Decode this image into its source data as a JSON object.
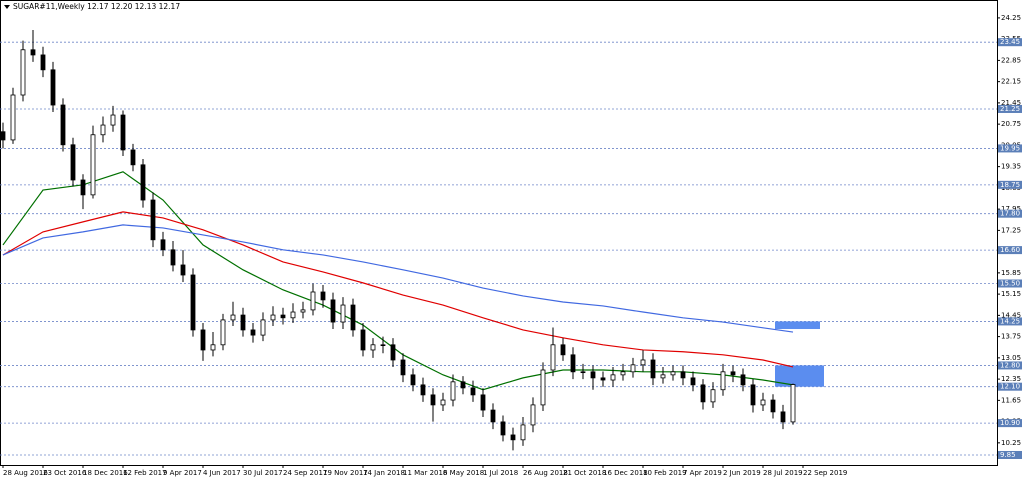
{
  "chart_data": {
    "type": "candlestick",
    "title": "SUGAR#11,Weekly  12.17 12.20 12.13 12.17",
    "ylim": [
      9.52,
      24.84
    ],
    "yticks": [
      24.25,
      23.55,
      22.85,
      22.15,
      21.45,
      20.75,
      20.05,
      19.35,
      18.65,
      17.95,
      17.25,
      16.55,
      15.85,
      15.15,
      14.45,
      13.75,
      13.05,
      12.35,
      11.65,
      10.95,
      10.25
    ],
    "levels": [
      23.45,
      21.25,
      19.95,
      18.75,
      {
        "value": 17.8,
        "label": "17.80"
      },
      {
        "value": 16.6,
        "label": "16.60"
      },
      {
        "value": 15.5,
        "label": "15.50"
      },
      14.25,
      {
        "value": 12.8,
        "label": "12.80"
      },
      {
        "value": 12.1,
        "label": "12.10"
      },
      {
        "value": 10.9,
        "label": "10.90"
      },
      9.85
    ],
    "date_labels": [
      "28 Aug 2016",
      "23 Oct 2016",
      "18 Dec 2016",
      "12 Feb 2017",
      "9 Apr 2017",
      "4 Jun 2017",
      "30 Jul 2017",
      "24 Sep 2017",
      "19 Nov 2017",
      "14 Jan 2018",
      "11 Mar 2018",
      "6 May 2018",
      "1 Jul 2018",
      "26 Aug 2018",
      "21 Oct 2018",
      "16 Dec 2018",
      "10 Feb 2019",
      "7 Apr 2019",
      "2 Jun 2019",
      "28 Jul 2019",
      "22 Sep 2019"
    ],
    "ohlc": [
      [
        20.5,
        20.8,
        19.95,
        20.23
      ],
      [
        20.23,
        21.95,
        20.1,
        21.71
      ],
      [
        21.71,
        23.5,
        21.5,
        23.2
      ],
      [
        23.2,
        23.85,
        22.8,
        23.03
      ],
      [
        23.03,
        23.3,
        22.3,
        22.54
      ],
      [
        22.54,
        22.8,
        21.15,
        21.38
      ],
      [
        21.38,
        21.6,
        19.85,
        20.07
      ],
      [
        20.07,
        20.3,
        18.7,
        18.91
      ],
      [
        18.91,
        19.1,
        17.95,
        18.42
      ],
      [
        18.42,
        20.7,
        18.3,
        20.4
      ],
      [
        20.4,
        21.0,
        20.15,
        20.72
      ],
      [
        20.72,
        21.35,
        20.5,
        21.05
      ],
      [
        21.05,
        21.2,
        19.7,
        19.9
      ],
      [
        19.9,
        20.1,
        19.2,
        19.41
      ],
      [
        19.41,
        19.6,
        18.0,
        18.25
      ],
      [
        18.25,
        18.5,
        16.7,
        16.94
      ],
      [
        16.94,
        17.2,
        16.4,
        16.61
      ],
      [
        16.61,
        16.9,
        15.9,
        16.11
      ],
      [
        16.11,
        16.6,
        15.55,
        15.78
      ],
      [
        15.78,
        16.0,
        13.75,
        13.97
      ],
      [
        13.97,
        14.2,
        12.95,
        13.31
      ],
      [
        13.31,
        13.9,
        13.1,
        13.48
      ],
      [
        13.48,
        14.5,
        13.3,
        14.3
      ],
      [
        14.3,
        14.9,
        14.1,
        14.46
      ],
      [
        14.46,
        14.7,
        13.75,
        13.97
      ],
      [
        13.97,
        14.2,
        13.55,
        13.8
      ],
      [
        13.8,
        14.55,
        13.6,
        14.3
      ],
      [
        14.3,
        14.75,
        14.1,
        14.46
      ],
      [
        14.46,
        14.7,
        14.15,
        14.37
      ],
      [
        14.37,
        14.85,
        14.2,
        14.56
      ],
      [
        14.56,
        14.9,
        14.35,
        14.63
      ],
      [
        14.63,
        15.5,
        14.45,
        15.22
      ],
      [
        15.22,
        15.45,
        14.7,
        14.96
      ],
      [
        14.96,
        15.2,
        14.0,
        14.23
      ],
      [
        14.23,
        15.05,
        14.0,
        14.79
      ],
      [
        14.79,
        15.0,
        13.75,
        13.97
      ],
      [
        13.97,
        14.2,
        13.1,
        13.31
      ],
      [
        13.31,
        13.7,
        13.05,
        13.48
      ],
      [
        13.48,
        13.75,
        13.2,
        13.48
      ],
      [
        13.48,
        13.7,
        12.75,
        12.98
      ],
      [
        12.98,
        13.2,
        12.25,
        12.49
      ],
      [
        12.49,
        12.7,
        11.95,
        12.16
      ],
      [
        12.16,
        12.4,
        11.6,
        11.83
      ],
      [
        11.83,
        12.05,
        10.95,
        11.5
      ],
      [
        11.5,
        11.9,
        11.3,
        11.66
      ],
      [
        11.66,
        12.5,
        11.45,
        12.26
      ],
      [
        12.26,
        12.45,
        11.85,
        12.06
      ],
      [
        12.06,
        12.3,
        11.6,
        11.83
      ],
      [
        11.83,
        12.05,
        11.1,
        11.33
      ],
      [
        11.33,
        11.55,
        10.7,
        10.94
      ],
      [
        10.94,
        11.15,
        10.3,
        10.51
      ],
      [
        10.51,
        10.75,
        10.0,
        10.35
      ],
      [
        10.35,
        11.1,
        10.15,
        10.84
      ],
      [
        10.84,
        11.75,
        10.6,
        11.5
      ],
      [
        11.5,
        12.9,
        11.3,
        12.65
      ],
      [
        12.65,
        14.05,
        12.45,
        13.48
      ],
      [
        13.48,
        13.7,
        12.95,
        13.15
      ],
      [
        13.15,
        13.4,
        12.35,
        12.59
      ],
      [
        12.59,
        12.85,
        12.35,
        12.59
      ],
      [
        12.59,
        12.8,
        12.0,
        12.39
      ],
      [
        12.39,
        12.6,
        12.1,
        12.32
      ],
      [
        12.32,
        12.75,
        12.1,
        12.49
      ],
      [
        12.49,
        12.85,
        12.3,
        12.59
      ],
      [
        12.59,
        13.05,
        12.4,
        12.82
      ],
      [
        12.82,
        13.3,
        12.6,
        12.98
      ],
      [
        12.98,
        13.2,
        12.15,
        12.39
      ],
      [
        12.39,
        12.75,
        12.2,
        12.49
      ],
      [
        12.49,
        12.8,
        12.3,
        12.59
      ],
      [
        12.59,
        12.8,
        12.15,
        12.39
      ],
      [
        12.39,
        12.6,
        11.95,
        12.16
      ],
      [
        12.16,
        12.35,
        11.35,
        11.6
      ],
      [
        11.6,
        12.25,
        11.4,
        12.0
      ],
      [
        12.0,
        12.85,
        11.8,
        12.59
      ],
      [
        12.59,
        12.8,
        12.25,
        12.49
      ],
      [
        12.49,
        12.7,
        11.95,
        12.16
      ],
      [
        12.16,
        12.35,
        11.25,
        11.5
      ],
      [
        11.5,
        11.9,
        11.3,
        11.66
      ],
      [
        11.66,
        11.85,
        11.05,
        11.27
      ],
      [
        11.27,
        11.5,
        10.7,
        10.94
      ],
      [
        10.94,
        12.2,
        10.85,
        12.17
      ]
    ],
    "ma_x": [
      0,
      4,
      8,
      12,
      16,
      20,
      24,
      28,
      32,
      36,
      40,
      44,
      48,
      52,
      56,
      60,
      64,
      68,
      72,
      76,
      79
    ],
    "series": [
      {
        "color": "#007000",
        "values": [
          16.77,
          18.58,
          18.75,
          19.18,
          18.25,
          16.77,
          15.95,
          15.29,
          14.79,
          14.13,
          13.15,
          12.49,
          12.0,
          12.39,
          12.65,
          12.65,
          12.59,
          12.59,
          12.49,
          12.32,
          12.16
        ]
      },
      {
        "color": "#e00000",
        "values": [
          16.44,
          17.2,
          17.53,
          17.86,
          17.66,
          17.27,
          16.77,
          16.21,
          15.88,
          15.52,
          15.12,
          14.79,
          14.37,
          13.97,
          13.71,
          13.48,
          13.31,
          13.25,
          13.15,
          12.98,
          12.75
        ]
      },
      {
        "color": "#4169e1",
        "values": [
          16.44,
          17.0,
          17.2,
          17.43,
          17.33,
          17.1,
          16.87,
          16.61,
          16.44,
          16.21,
          15.95,
          15.68,
          15.35,
          15.09,
          14.89,
          14.76,
          14.56,
          14.37,
          14.23,
          14.04,
          13.9
        ]
      }
    ],
    "zones": [
      {
        "from": 14.25,
        "to": 14.0,
        "color": "#5b8def"
      },
      {
        "from": 12.8,
        "to": 12.1,
        "color": "#5b8def"
      }
    ]
  }
}
